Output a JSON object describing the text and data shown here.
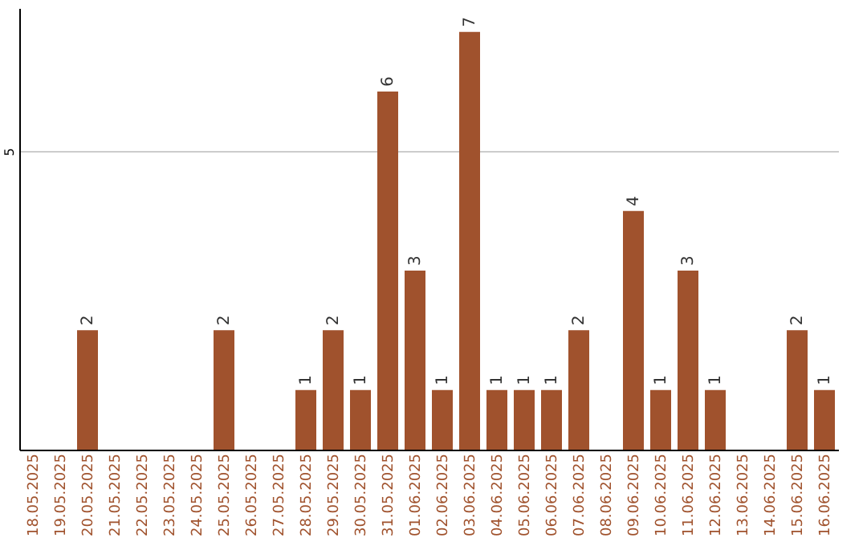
{
  "chart_data": {
    "type": "bar",
    "categories": [
      "18.05.2025",
      "19.05.2025",
      "20.05.2025",
      "21.05.2025",
      "22.05.2025",
      "23.05.2025",
      "24.05.2025",
      "25.05.2025",
      "26.05.2025",
      "27.05.2025",
      "28.05.2025",
      "29.05.2025",
      "30.05.2025",
      "31.05.2025",
      "01.06.2025",
      "02.06.2025",
      "03.06.2025",
      "04.06.2025",
      "05.06.2025",
      "06.06.2025",
      "07.06.2025",
      "08.06.2025",
      "09.06.2025",
      "10.06.2025",
      "11.06.2025",
      "12.06.2025",
      "13.06.2025",
      "14.06.2025",
      "15.06.2025",
      "16.06.2025"
    ],
    "values": [
      0,
      0,
      2,
      0,
      0,
      0,
      0,
      2,
      0,
      0,
      1,
      2,
      1,
      6,
      3,
      1,
      7,
      1,
      1,
      1,
      2,
      0,
      4,
      1,
      3,
      1,
      0,
      0,
      2,
      1
    ],
    "value_labels": [
      null,
      null,
      "2",
      null,
      null,
      null,
      null,
      "2",
      null,
      null,
      "1",
      "2",
      "1",
      "6",
      "3",
      "1",
      "7",
      "1",
      "1",
      "1",
      "2",
      null,
      "4",
      "1",
      "3",
      "1",
      null,
      null,
      "2",
      "1"
    ],
    "color": "#a0522d",
    "ylim": [
      0,
      7.4
    ],
    "yticks": [
      5
    ],
    "grid": "y"
  }
}
